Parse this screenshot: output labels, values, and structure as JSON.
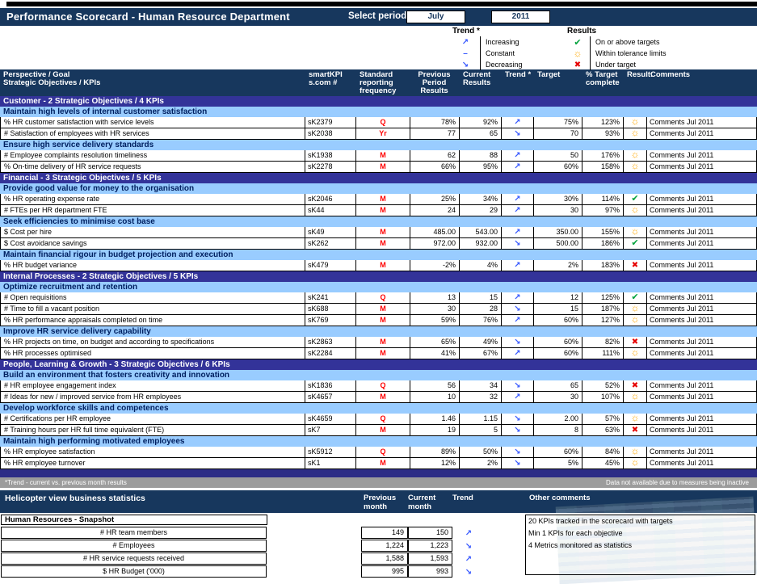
{
  "window": {
    "title": "Performance Scorecard - Human Resource Department",
    "select_period_label": "Select period",
    "period_month": "July",
    "period_year": "2011"
  },
  "colors": {
    "navy": "#17375D",
    "section_band": "#333399",
    "objective_band": "#99CCFF",
    "frequency_red": "#FF0000",
    "trend_blue": "#3355FF",
    "result_green": "#00A23C",
    "result_orange": "#FFA800",
    "result_red": "#E60000",
    "footnote_gray": "#9C9C9C"
  },
  "legend": {
    "trend": {
      "title": "Trend *",
      "items": [
        {
          "icon": "up",
          "label": "Increasing"
        },
        {
          "icon": "constant",
          "label": "Constant"
        },
        {
          "icon": "down",
          "label": "Decreasing"
        }
      ]
    },
    "results": {
      "title": "Results",
      "items": [
        {
          "icon": "ok",
          "label": "On or above targets"
        },
        {
          "icon": "tolerance",
          "label": "Within tolerance limits"
        },
        {
          "icon": "under",
          "label": "Under target"
        }
      ]
    }
  },
  "table": {
    "headers": {
      "kpi": "Perspective / Goal\nStrategic Objectives / KPIs",
      "id": "smartKPI\ns.com #",
      "freq": "Standard\nreporting\nfrequency",
      "prev": "Previous\nPeriod\nResults",
      "curr": "Current\nResults",
      "trend": "Trend *",
      "target": "Target",
      "complete": "% Target\ncomplete",
      "result": "Result:",
      "comments": "Comments"
    },
    "sections": [
      {
        "name": "Customer - 2 Strategic Objectives / 4 KPIs",
        "objectives": [
          {
            "name": "Maintain high levels of internal customer satisfaction",
            "kpis": [
              {
                "name": "% HR customer satisfaction with service levels",
                "id": "sK2379",
                "freq": "Q",
                "prev": "78%",
                "curr": "92%",
                "trend": "up",
                "target": "75%",
                "complete": "123%",
                "result": "tolerance",
                "comments": "Comments Jul 2011"
              },
              {
                "name": "# Satisfaction of employees with HR services",
                "id": "sK2038",
                "freq": "Yr",
                "prev": "77",
                "curr": "65",
                "trend": "down",
                "target": "70",
                "complete": "93%",
                "result": "tolerance",
                "comments": "Comments Jul 2011"
              }
            ]
          },
          {
            "name": "Ensure high service delivery standards",
            "kpis": [
              {
                "name": "# Employee complaints resolution timeliness",
                "id": "sK1938",
                "freq": "M",
                "prev": "62",
                "curr": "88",
                "trend": "up",
                "target": "50",
                "complete": "176%",
                "result": "tolerance",
                "comments": "Comments Jul 2011"
              },
              {
                "name": "% On-time delivery of HR service requests",
                "id": "sK2278",
                "freq": "M",
                "prev": "66%",
                "curr": "95%",
                "trend": "up",
                "target": "60%",
                "complete": "158%",
                "result": "tolerance",
                "comments": "Comments Jul 2011"
              }
            ]
          }
        ]
      },
      {
        "name": "Financial - 3 Strategic Objectives / 5 KPIs",
        "objectives": [
          {
            "name": "Provide good value for money to the organisation",
            "kpis": [
              {
                "name": "% HR operating expense rate",
                "id": "sK2046",
                "freq": "M",
                "prev": "25%",
                "curr": "34%",
                "trend": "up",
                "target": "30%",
                "complete": "114%",
                "result": "ok",
                "comments": "Comments Jul 2011"
              },
              {
                "name": "# FTEs per HR department FTE",
                "id": "sK44",
                "freq": "M",
                "prev": "24",
                "curr": "29",
                "trend": "up",
                "target": "30",
                "complete": "97%",
                "result": "tolerance",
                "comments": "Comments Jul 2011"
              }
            ]
          },
          {
            "name": "Seek efficiencies to minimise cost base",
            "kpis": [
              {
                "name": "$ Cost per hire",
                "id": "sK49",
                "freq": "M",
                "prev": "485.00",
                "curr": "543.00",
                "trend": "up",
                "target": "350.00",
                "complete": "155%",
                "result": "tolerance",
                "comments": "Comments Jul 2011"
              },
              {
                "name": "$ Cost avoidance savings",
                "id": "sK262",
                "freq": "M",
                "prev": "972.00",
                "curr": "932.00",
                "trend": "down",
                "target": "500.00",
                "complete": "186%",
                "result": "ok",
                "comments": "Comments Jul 2011"
              }
            ]
          },
          {
            "name": "Maintain financial rigour in budget projection and execution",
            "kpis": [
              {
                "name": "% HR budget variance",
                "id": "sK479",
                "freq": "M",
                "prev": "-2%",
                "curr": "4%",
                "trend": "up",
                "target": "2%",
                "complete": "183%",
                "result": "under",
                "comments": "Comments Jul 2011"
              }
            ]
          }
        ]
      },
      {
        "name": "Internal Processes - 2 Strategic Objectives / 5 KPIs",
        "objectives": [
          {
            "name": "Optimize recruitment and retention",
            "kpis": [
              {
                "name": "# Open requisitions",
                "id": "sK241",
                "freq": "Q",
                "prev": "13",
                "curr": "15",
                "trend": "up",
                "target": "12",
                "complete": "125%",
                "result": "ok",
                "comments": "Comments Jul 2011"
              },
              {
                "name": "# Time to fill a vacant position",
                "id": "sK688",
                "freq": "M",
                "prev": "30",
                "curr": "28",
                "trend": "down",
                "target": "15",
                "complete": "187%",
                "result": "tolerance",
                "comments": "Comments Jul 2011"
              },
              {
                "name": "% HR performance appraisals completed on time",
                "id": "sK769",
                "freq": "M",
                "prev": "59%",
                "curr": "76%",
                "trend": "up",
                "target": "60%",
                "complete": "127%",
                "result": "tolerance",
                "comments": "Comments Jul 2011"
              }
            ]
          },
          {
            "name": "Improve HR service delivery capability",
            "kpis": [
              {
                "name": "% HR projects on time, on budget and according to specifications",
                "id": "sK2863",
                "freq": "M",
                "prev": "65%",
                "curr": "49%",
                "trend": "down",
                "target": "60%",
                "complete": "82%",
                "result": "under",
                "comments": "Comments Jul 2011"
              },
              {
                "name": "% HR processes optimised",
                "id": "sK2284",
                "freq": "M",
                "prev": "41%",
                "curr": "67%",
                "trend": "up",
                "target": "60%",
                "complete": "111%",
                "result": "tolerance",
                "comments": "Comments Jul 2011"
              }
            ]
          }
        ]
      },
      {
        "name": "People, Learning & Growth - 3 Strategic Objectives / 6 KPIs",
        "objectives": [
          {
            "name": "Build an environment that fosters creativity and innovation",
            "kpis": [
              {
                "name": "# HR employee engagement index",
                "id": "sK1836",
                "freq": "Q",
                "prev": "56",
                "curr": "34",
                "trend": "down",
                "target": "65",
                "complete": "52%",
                "result": "under",
                "comments": "Comments Jul 2011"
              },
              {
                "name": "# Ideas for new / improved service from HR employees",
                "id": "sK4657",
                "freq": "M",
                "prev": "10",
                "curr": "32",
                "trend": "up",
                "target": "30",
                "complete": "107%",
                "result": "tolerance",
                "comments": "Comments Jul 2011"
              }
            ]
          },
          {
            "name": "Develop workforce skills and competences",
            "kpis": [
              {
                "name": "# Certifications per HR employee",
                "id": "sK4659",
                "freq": "Q",
                "prev": "1.46",
                "curr": "1.15",
                "trend": "down",
                "target": "2.00",
                "complete": "57%",
                "result": "tolerance",
                "comments": "Comments Jul 2011"
              },
              {
                "name": "# Training hours per HR full time equivalent (FTE)",
                "id": "sK7",
                "freq": "M",
                "prev": "19",
                "curr": "5",
                "trend": "down",
                "target": "8",
                "complete": "63%",
                "result": "under",
                "comments": "Comments Jul 2011"
              }
            ]
          },
          {
            "name": "Maintain high performing motivated employees",
            "kpis": [
              {
                "name": "% HR employee satisfaction",
                "id": "sK5912",
                "freq": "Q",
                "prev": "89%",
                "curr": "50%",
                "trend": "down",
                "target": "60%",
                "complete": "84%",
                "result": "tolerance",
                "comments": "Comments Jul 2011"
              },
              {
                "name": "% HR employee turnover",
                "id": "sK1",
                "freq": "M",
                "prev": "12%",
                "curr": "2%",
                "trend": "down",
                "target": "5%",
                "complete": "45%",
                "result": "tolerance",
                "comments": "Comments Jul 2011"
              }
            ]
          }
        ]
      }
    ]
  },
  "footnote": {
    "left": "*Trend - current vs. previous month results",
    "right": "Data not available due to measures being inactive"
  },
  "stats": {
    "title": "Helicopter view business statistics",
    "headers": {
      "prev": "Previous\nmonth",
      "curr": "Current\nmonth",
      "trend": "Trend",
      "other": "Other comments"
    },
    "snapshot_title": "Human Resources - Snapshot",
    "rows": [
      {
        "label": "# HR team members",
        "prev": "149",
        "curr": "150",
        "trend": "up"
      },
      {
        "label": "# Employees",
        "prev": "1,224",
        "curr": "1,223",
        "trend": "down"
      },
      {
        "label": "# HR service requests received",
        "prev": "1,588",
        "curr": "1,593",
        "trend": "up"
      },
      {
        "label": "$ HR Budget ('000)",
        "prev": "995",
        "curr": "993",
        "trend": "down"
      }
    ],
    "other_comments": [
      "20 KPIs tracked in the scorecard with targets",
      "Min 1 KPIs for each objective",
      "4 Metrics monitored as statistics"
    ]
  }
}
